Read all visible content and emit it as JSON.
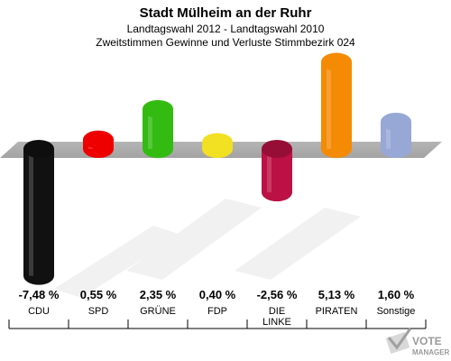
{
  "header": {
    "title": "Stadt Mülheim an der Ruhr",
    "subtitle1": "Landtagswahl 2012 - Landtagswahl 2010",
    "subtitle2": "Zweitstimmen Gewinne und Verluste Stimmbezirk 024"
  },
  "logo": {
    "line1": "VOTE",
    "line2": "MANAGER"
  },
  "chart_data": {
    "type": "bar",
    "categories": [
      "CDU",
      "SPD",
      "GRÜNE",
      "FDP",
      "DIE LINKE",
      "PIRATEN",
      "Sonstige"
    ],
    "category_lines": [
      [
        "CDU"
      ],
      [
        "SPD"
      ],
      [
        "GRÜNE"
      ],
      [
        "FDP"
      ],
      [
        "DIE",
        "LINKE"
      ],
      [
        "PIRATEN"
      ],
      [
        "Sonstige"
      ]
    ],
    "values": [
      -7.48,
      0.55,
      2.35,
      0.4,
      -2.56,
      5.13,
      1.6
    ],
    "value_labels": [
      "-7,48 %",
      "0,55 %",
      "2,35 %",
      "0,40 %",
      "-2,56 %",
      "5,13 %",
      "1,60 %"
    ],
    "colors": [
      "#111111",
      "#ee0000",
      "#33bb11",
      "#f2e022",
      "#bb1144",
      "#f58a05",
      "#97a8d6"
    ],
    "unit": "%",
    "zero_baseline": "grey band"
  }
}
